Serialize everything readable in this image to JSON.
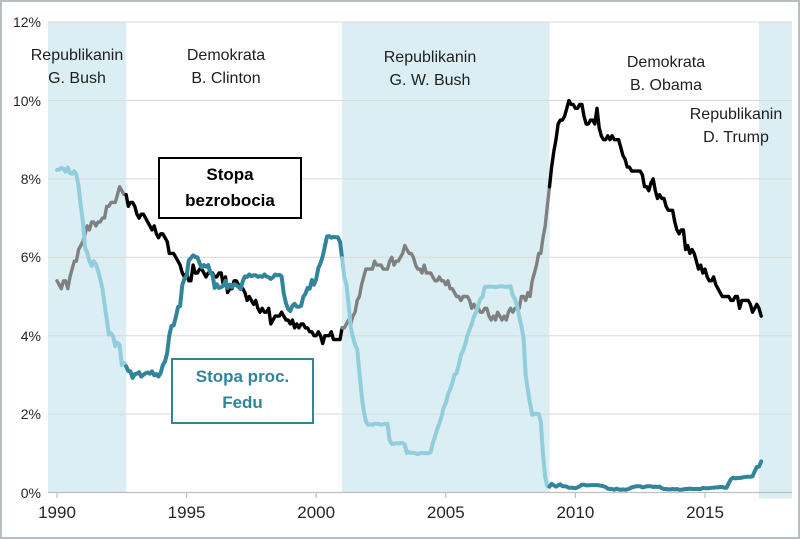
{
  "series_labels": {
    "unemployment": {
      "line1": "Stopa",
      "line2": "bezrobocia"
    },
    "fed": {
      "line1": "Stopa proc.",
      "line2": "Fedu"
    }
  },
  "colors": {
    "band": "#DAEEF3",
    "unemployment_democrat": "#000000",
    "unemployment_republican": "#808080",
    "fed_democrat": "#31859B",
    "fed_republican": "#92CDDC",
    "gridline": "#D9D9D9",
    "axis_line": "#BFBFBF",
    "text": "#262626"
  },
  "chart_data": {
    "type": "line",
    "title": "",
    "xlabel": "",
    "ylabel": "",
    "x_axis": {
      "tick_labels": [
        "1990",
        "1995",
        "2000",
        "2005",
        "2010",
        "2015"
      ],
      "tick_years": [
        1990,
        1995,
        2000,
        2005,
        2010,
        2015
      ],
      "range_years": [
        1989.65,
        2018.4
      ]
    },
    "y_axis": {
      "tick_labels": [
        "12%",
        "10%",
        "8%",
        "6%",
        "4%",
        "2%",
        "0%"
      ],
      "tick_values": [
        12,
        10,
        8,
        6,
        4,
        2,
        0
      ],
      "range": [
        0,
        12
      ],
      "unit": "%",
      "grid": true
    },
    "start_month": "1990-01",
    "end_month": "2017-03",
    "presidency_labels": [
      {
        "id": "gbush",
        "party": "Republikanin",
        "name": "G. Bush"
      },
      {
        "id": "clinton",
        "party": "Demokrata",
        "name": "B. Clinton"
      },
      {
        "id": "gwbush",
        "party": "Republikanin",
        "name": "G. W. Bush"
      },
      {
        "id": "obama",
        "party": "Demokrata",
        "name": "B. Obama"
      },
      {
        "id": "trump",
        "party": "Republikanin",
        "name": "D. Trump"
      }
    ],
    "presidency_bands": [
      {
        "president": "G. Bush",
        "party": "Republikanin",
        "from_year": 1989.65,
        "to_year": 1992.67
      },
      {
        "president": "G. W. Bush",
        "party": "Republikanin",
        "from_year": 2001.0,
        "to_year": 2009.0
      },
      {
        "president": "D. Trump",
        "party": "Republikanin",
        "from_year": 2017.08,
        "to_year": 2018.4
      }
    ],
    "series": [
      {
        "id": "unemployment",
        "name": "Stopa bezrobocia",
        "segments": [
          {
            "to_index": 32,
            "color": "#808080"
          },
          {
            "to_index": 132,
            "color": "#000000"
          },
          {
            "to_index": 228,
            "color": "#808080"
          },
          {
            "to_index": 326,
            "color": "#000000"
          }
        ],
        "values": [
          5.4,
          5.3,
          5.2,
          5.4,
          5.4,
          5.2,
          5.5,
          5.7,
          5.9,
          5.9,
          6.2,
          6.3,
          6.4,
          6.6,
          6.8,
          6.7,
          6.9,
          6.9,
          6.8,
          6.9,
          6.9,
          7.0,
          7.0,
          7.3,
          7.3,
          7.4,
          7.4,
          7.4,
          7.6,
          7.8,
          7.7,
          7.6,
          7.6,
          7.3,
          7.4,
          7.4,
          7.3,
          7.1,
          7.0,
          7.1,
          7.1,
          7.0,
          6.9,
          6.8,
          6.7,
          6.8,
          6.6,
          6.5,
          6.6,
          6.6,
          6.5,
          6.4,
          6.1,
          6.1,
          6.1,
          6.0,
          5.9,
          5.8,
          5.6,
          5.5,
          5.6,
          5.4,
          5.4,
          5.8,
          5.6,
          5.6,
          5.7,
          5.7,
          5.6,
          5.5,
          5.6,
          5.6,
          5.6,
          5.5,
          5.5,
          5.6,
          5.6,
          5.3,
          5.5,
          5.1,
          5.2,
          5.2,
          5.4,
          5.4,
          5.3,
          5.2,
          5.2,
          5.1,
          4.9,
          5.0,
          4.9,
          4.8,
          4.9,
          4.7,
          4.6,
          4.7,
          4.6,
          4.6,
          4.7,
          4.3,
          4.4,
          4.5,
          4.5,
          4.5,
          4.6,
          4.5,
          4.4,
          4.4,
          4.3,
          4.4,
          4.2,
          4.3,
          4.2,
          4.3,
          4.3,
          4.2,
          4.2,
          4.1,
          4.1,
          4.0,
          4.0,
          4.1,
          4.0,
          3.8,
          4.0,
          4.0,
          4.0,
          4.1,
          3.9,
          3.9,
          3.9,
          3.9,
          4.2,
          4.2,
          4.3,
          4.4,
          4.3,
          4.5,
          4.6,
          4.9,
          5.0,
          5.3,
          5.5,
          5.7,
          5.7,
          5.7,
          5.7,
          5.9,
          5.8,
          5.8,
          5.8,
          5.7,
          5.7,
          5.7,
          5.9,
          6.0,
          5.8,
          5.9,
          5.9,
          6.0,
          6.1,
          6.3,
          6.2,
          6.1,
          6.1,
          6.0,
          5.8,
          5.7,
          5.7,
          5.6,
          5.8,
          5.6,
          5.6,
          5.6,
          5.5,
          5.4,
          5.4,
          5.5,
          5.4,
          5.4,
          5.3,
          5.4,
          5.2,
          5.2,
          5.1,
          5.0,
          5.0,
          4.9,
          5.0,
          5.0,
          5.0,
          4.9,
          4.7,
          4.8,
          4.7,
          4.7,
          4.6,
          4.6,
          4.7,
          4.7,
          4.5,
          4.4,
          4.5,
          4.4,
          4.6,
          4.5,
          4.4,
          4.5,
          4.4,
          4.6,
          4.7,
          4.6,
          4.7,
          4.7,
          4.7,
          5.0,
          5.0,
          4.9,
          5.1,
          5.0,
          5.4,
          5.6,
          5.8,
          6.1,
          6.1,
          6.5,
          6.8,
          7.3,
          7.8,
          8.3,
          8.7,
          9.0,
          9.4,
          9.5,
          9.5,
          9.6,
          9.8,
          10.0,
          9.9,
          9.9,
          9.8,
          9.8,
          9.9,
          9.9,
          9.6,
          9.4,
          9.4,
          9.5,
          9.5,
          9.4,
          9.8,
          9.3,
          9.1,
          9.0,
          9.0,
          9.1,
          9.0,
          9.1,
          9.0,
          9.0,
          9.0,
          8.8,
          8.6,
          8.5,
          8.3,
          8.3,
          8.2,
          8.2,
          8.2,
          8.2,
          8.2,
          8.1,
          7.8,
          7.8,
          7.7,
          7.9,
          8.0,
          7.7,
          7.5,
          7.6,
          7.5,
          7.5,
          7.3,
          7.2,
          7.2,
          7.2,
          6.9,
          6.7,
          6.6,
          6.7,
          6.7,
          6.2,
          6.3,
          6.1,
          6.2,
          6.1,
          5.9,
          5.7,
          5.8,
          5.6,
          5.7,
          5.5,
          5.4,
          5.4,
          5.5,
          5.3,
          5.2,
          5.1,
          5.0,
          5.0,
          5.0,
          5.0,
          4.9,
          4.9,
          5.0,
          5.0,
          4.7,
          4.9,
          4.9,
          4.9,
          4.9,
          4.8,
          4.6,
          4.7,
          4.8,
          4.7,
          4.5
        ]
      },
      {
        "id": "fed_rate",
        "name": "Stopa proc. Fedu",
        "segments": [
          {
            "to_index": 32,
            "color": "#92CDDC"
          },
          {
            "to_index": 132,
            "color": "#31859B"
          },
          {
            "to_index": 228,
            "color": "#92CDDC"
          },
          {
            "to_index": 326,
            "color": "#31859B"
          }
        ],
        "values": [
          8.23,
          8.24,
          8.28,
          8.26,
          8.18,
          8.29,
          8.15,
          8.13,
          8.2,
          8.11,
          7.81,
          7.31,
          6.91,
          6.25,
          6.12,
          5.91,
          5.78,
          5.9,
          5.82,
          5.66,
          5.45,
          5.21,
          4.81,
          4.43,
          4.03,
          4.06,
          3.98,
          3.73,
          3.82,
          3.76,
          3.25,
          3.3,
          3.22,
          3.1,
          3.09,
          2.92,
          3.02,
          3.03,
          3.07,
          2.96,
          3.0,
          3.04,
          3.06,
          3.03,
          3.09,
          2.99,
          3.02,
          2.96,
          3.05,
          3.25,
          3.34,
          3.56,
          4.01,
          4.25,
          4.26,
          4.47,
          4.73,
          4.76,
          5.29,
          5.45,
          5.53,
          5.92,
          5.98,
          6.05,
          6.01,
          6.0,
          5.85,
          5.74,
          5.8,
          5.76,
          5.8,
          5.6,
          5.56,
          5.22,
          5.31,
          5.22,
          5.24,
          5.27,
          5.4,
          5.22,
          5.3,
          5.24,
          5.31,
          5.29,
          5.25,
          5.19,
          5.39,
          5.51,
          5.5,
          5.56,
          5.52,
          5.54,
          5.54,
          5.5,
          5.52,
          5.5,
          5.56,
          5.51,
          5.49,
          5.45,
          5.49,
          5.56,
          5.54,
          5.55,
          5.51,
          5.07,
          4.83,
          4.68,
          4.63,
          4.76,
          4.81,
          4.74,
          4.74,
          4.76,
          4.99,
          5.07,
          5.22,
          5.2,
          5.42,
          5.3,
          5.45,
          5.73,
          5.85,
          6.02,
          6.27,
          6.53,
          6.54,
          6.5,
          6.52,
          6.51,
          6.51,
          6.4,
          5.98,
          5.49,
          5.31,
          4.8,
          4.21,
          3.97,
          3.77,
          3.65,
          3.07,
          2.49,
          2.09,
          1.82,
          1.73,
          1.74,
          1.73,
          1.75,
          1.75,
          1.75,
          1.73,
          1.74,
          1.75,
          1.75,
          1.34,
          1.24,
          1.24,
          1.26,
          1.25,
          1.26,
          1.26,
          1.22,
          1.01,
          1.03,
          1.01,
          1.01,
          1.0,
          0.98,
          1.0,
          1.01,
          1.0,
          1.0,
          1.0,
          1.03,
          1.26,
          1.43,
          1.61,
          1.76,
          1.93,
          2.16,
          2.28,
          2.5,
          2.63,
          2.79,
          3.0,
          3.04,
          3.26,
          3.5,
          3.62,
          3.78,
          4.0,
          4.16,
          4.29,
          4.49,
          4.59,
          4.79,
          4.94,
          4.99,
          5.24,
          5.25,
          5.25,
          5.25,
          5.25,
          5.24,
          5.25,
          5.26,
          5.26,
          5.25,
          5.25,
          5.25,
          5.26,
          5.02,
          4.94,
          4.76,
          4.49,
          4.24,
          3.94,
          2.98,
          2.61,
          2.28,
          1.98,
          2.0,
          2.01,
          2.0,
          1.81,
          0.97,
          0.39,
          0.16,
          0.15,
          0.22,
          0.18,
          0.15,
          0.18,
          0.21,
          0.16,
          0.16,
          0.15,
          0.12,
          0.12,
          0.12,
          0.11,
          0.13,
          0.16,
          0.2,
          0.2,
          0.18,
          0.18,
          0.19,
          0.19,
          0.19,
          0.19,
          0.18,
          0.17,
          0.16,
          0.14,
          0.1,
          0.09,
          0.09,
          0.07,
          0.1,
          0.08,
          0.07,
          0.08,
          0.07,
          0.08,
          0.1,
          0.13,
          0.14,
          0.16,
          0.16,
          0.16,
          0.13,
          0.14,
          0.16,
          0.16,
          0.16,
          0.14,
          0.15,
          0.14,
          0.15,
          0.11,
          0.09,
          0.09,
          0.08,
          0.08,
          0.09,
          0.08,
          0.09,
          0.07,
          0.07,
          0.08,
          0.09,
          0.09,
          0.1,
          0.09,
          0.09,
          0.09,
          0.09,
          0.09,
          0.12,
          0.11,
          0.11,
          0.11,
          0.12,
          0.12,
          0.13,
          0.13,
          0.14,
          0.14,
          0.12,
          0.12,
          0.24,
          0.34,
          0.38,
          0.36,
          0.37,
          0.37,
          0.38,
          0.39,
          0.4,
          0.4,
          0.4,
          0.41,
          0.54,
          0.65,
          0.66,
          0.79
        ]
      }
    ]
  }
}
